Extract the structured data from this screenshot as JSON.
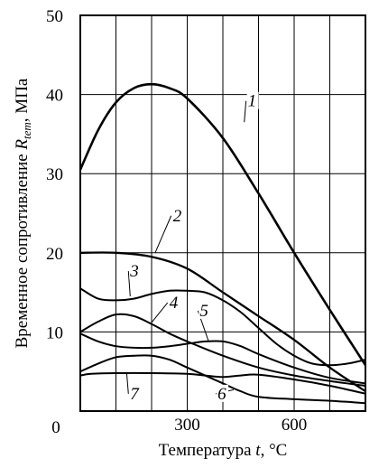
{
  "chart_data": {
    "type": "line",
    "title": "",
    "xlabel": {
      "prefix": "Температура ",
      "var": "t",
      "suffix": ", °C"
    },
    "ylabel": {
      "prefix": "Временное сопротивление ",
      "var": "R",
      "sub": "tem",
      "suffix": ",  МПа"
    },
    "xlim": [
      0,
      800
    ],
    "ylim": [
      0,
      50
    ],
    "grid": true,
    "x_major_ticks": [
      300,
      600
    ],
    "x_minor_gridlines": [
      0,
      100,
      200,
      300,
      400,
      500,
      600,
      700,
      800
    ],
    "y_ticks": [
      0,
      10,
      20,
      30,
      40,
      50
    ],
    "origin_label": "0",
    "series": [
      {
        "label": "1",
        "x": [
          0,
          50,
          100,
          150,
          200,
          250,
          300,
          400,
          500,
          600,
          700,
          800
        ],
        "y": [
          30.5,
          35.5,
          39.0,
          40.8,
          41.3,
          40.8,
          39.5,
          34.5,
          27.5,
          20.0,
          12.8,
          5.8
        ]
      },
      {
        "label": "2",
        "x": [
          0,
          100,
          200,
          300,
          400,
          500,
          600,
          700,
          800
        ],
        "y": [
          20.0,
          20.0,
          19.5,
          18.0,
          15.0,
          12.0,
          9.0,
          5.5,
          2.5
        ]
      },
      {
        "label": "3",
        "x": [
          0,
          50,
          100,
          150,
          200,
          250,
          300,
          350,
          400,
          450,
          500,
          550,
          600,
          650,
          700,
          750,
          800
        ],
        "y": [
          15.5,
          14.2,
          14.0,
          14.2,
          14.8,
          15.2,
          15.2,
          15.0,
          14.0,
          12.5,
          10.5,
          8.5,
          7.0,
          6.0,
          5.8,
          6.0,
          6.5
        ]
      },
      {
        "label": "4",
        "x": [
          0,
          50,
          100,
          150,
          200,
          250,
          300,
          400,
          500,
          600,
          700,
          800
        ],
        "y": [
          10.0,
          11.3,
          12.2,
          12.0,
          11.0,
          9.8,
          8.8,
          7.0,
          5.5,
          4.5,
          3.8,
          3.2
        ]
      },
      {
        "label": "5",
        "x": [
          0,
          50,
          100,
          150,
          200,
          250,
          300,
          350,
          400,
          450,
          500,
          600,
          700,
          800
        ],
        "y": [
          9.8,
          8.8,
          8.2,
          8.0,
          8.0,
          8.2,
          8.5,
          8.8,
          8.8,
          8.2,
          7.2,
          5.5,
          4.2,
          3.5
        ]
      },
      {
        "label": "6",
        "x": [
          0,
          50,
          100,
          150,
          200,
          250,
          300,
          350,
          400,
          450,
          500,
          600,
          700,
          800
        ],
        "y": [
          5.0,
          6.0,
          6.8,
          7.0,
          7.0,
          6.5,
          5.5,
          4.5,
          3.5,
          2.5,
          1.8,
          1.5,
          1.3,
          1.0
        ]
      },
      {
        "label": "7",
        "x": [
          0,
          30,
          100,
          200,
          300,
          350,
          400,
          450,
          500,
          600,
          700,
          800
        ],
        "y": [
          4.5,
          4.7,
          4.8,
          4.8,
          4.7,
          4.5,
          4.3,
          4.5,
          4.6,
          4.0,
          3.2,
          2.2
        ]
      }
    ],
    "annotations": [
      {
        "text": "1",
        "x": 460,
        "y": 36.5,
        "tx": 470,
        "ty": 38.5
      },
      {
        "text": "2",
        "x": 210,
        "y": 20.0,
        "tx": 260,
        "ty": 24.0
      },
      {
        "text": "3",
        "x": 140,
        "y": 14.5,
        "tx": 140,
        "ty": 17.0
      },
      {
        "text": "4",
        "x": 200,
        "y": 11.2,
        "tx": 250,
        "ty": 13.0
      },
      {
        "text": "5",
        "x": 360,
        "y": 8.8,
        "tx": 335,
        "ty": 12.0
      },
      {
        "text": "6",
        "x": 430,
        "y": 2.7,
        "tx": 385,
        "ty": 1.5
      },
      {
        "text": "7",
        "x": 130,
        "y": 4.9,
        "tx": 140,
        "ty": 1.5
      }
    ]
  }
}
